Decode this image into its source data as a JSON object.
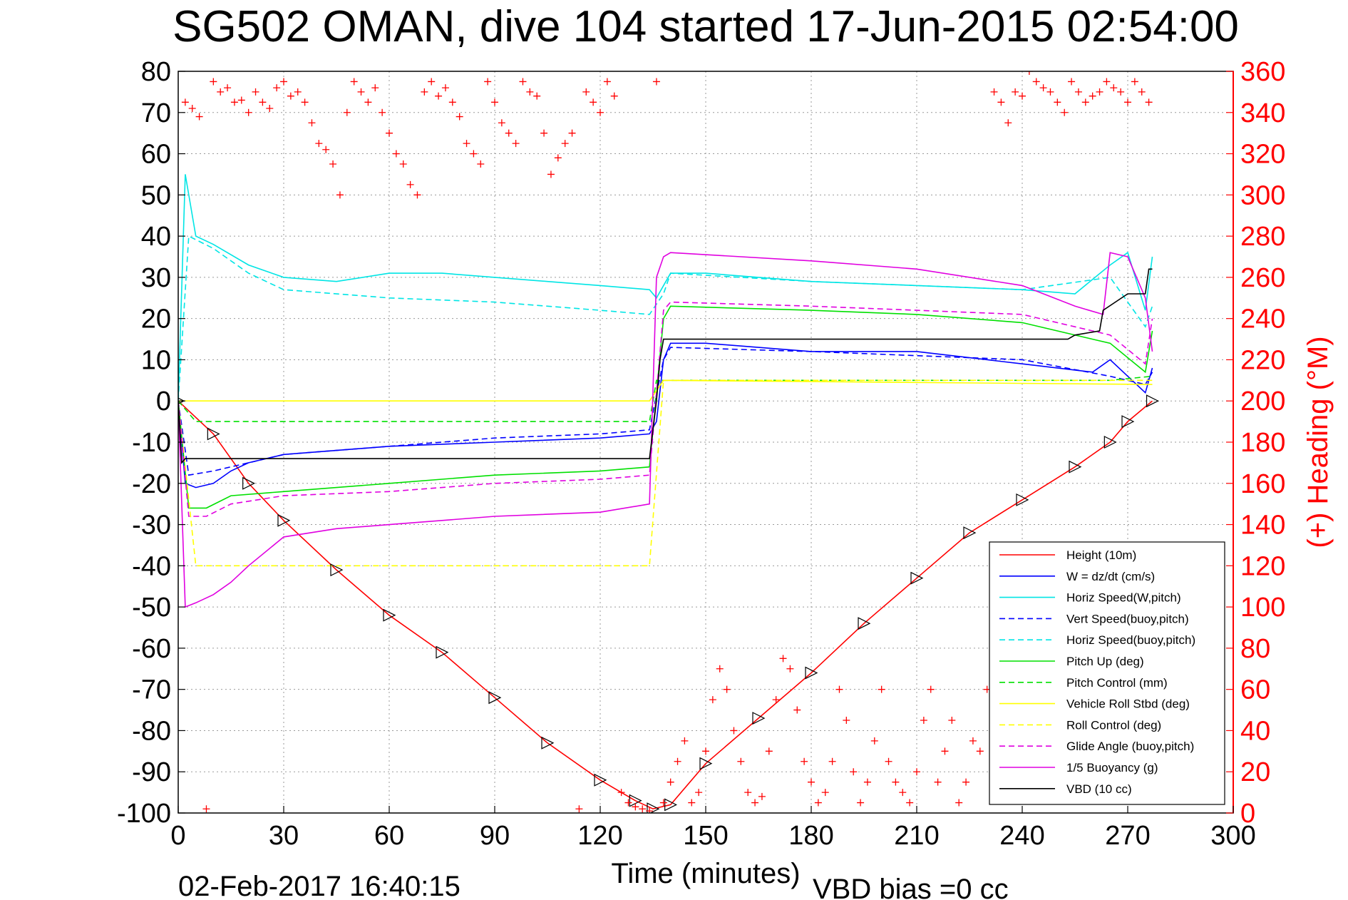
{
  "chart_data": {
    "type": "line",
    "title": "SG502 OMAN, dive 104 started 17-Jun-2015 02:54:00",
    "xlabel": "Time (minutes)",
    "ylabel_right": "(+) Heading (°M)",
    "xlim": [
      0,
      300
    ],
    "ylim_left": [
      -100,
      80
    ],
    "ylim_right": [
      0,
      360
    ],
    "x_ticks": [
      0,
      30,
      60,
      90,
      120,
      150,
      180,
      210,
      240,
      270,
      300
    ],
    "y_ticks_left": [
      80,
      70,
      60,
      50,
      40,
      30,
      20,
      10,
      0,
      -10,
      -20,
      -30,
      -40,
      -50,
      -60,
      -70,
      -80,
      -90,
      -100
    ],
    "y_ticks_right": [
      360,
      340,
      320,
      300,
      280,
      260,
      240,
      220,
      200,
      180,
      160,
      140,
      120,
      100,
      80,
      60,
      40,
      20,
      0
    ],
    "grid": true,
    "legend_position": "bottom-right",
    "footer_date": "02-Feb-2017 16:40:15",
    "footer_note": "VBD bias =0 cc",
    "series": [
      {
        "name": "Height (10m)",
        "color": "#ff0000",
        "style": "solid",
        "x": [
          0,
          10,
          20,
          30,
          45,
          60,
          75,
          90,
          105,
          120,
          130,
          135,
          140,
          150,
          165,
          180,
          195,
          210,
          225,
          240,
          255,
          265,
          270,
          277
        ],
        "y": [
          0,
          -8,
          -20,
          -29,
          -41,
          -52,
          -61,
          -72,
          -83,
          -92,
          -97,
          -99,
          -98,
          -88,
          -77,
          -66,
          -54,
          -43,
          -32,
          -24,
          -16,
          -10,
          -5,
          0
        ]
      },
      {
        "name": "W = dz/dt (cm/s)",
        "color": "#0000ff",
        "style": "solid",
        "x": [
          0,
          2,
          5,
          10,
          15,
          20,
          30,
          45,
          60,
          90,
          120,
          134,
          136,
          138,
          140,
          150,
          180,
          210,
          240,
          260,
          265,
          270,
          275,
          277
        ],
        "y": [
          0,
          -20,
          -21,
          -20,
          -17,
          -15,
          -13,
          -12,
          -11,
          -10,
          -9,
          -8,
          -5,
          10,
          14,
          14,
          12,
          12,
          9,
          7,
          10,
          6,
          2,
          8
        ]
      },
      {
        "name": "Horiz Speed(W,pitch)",
        "color": "#00e5e5",
        "style": "solid",
        "x": [
          0,
          2,
          5,
          10,
          20,
          30,
          45,
          60,
          75,
          90,
          105,
          120,
          134,
          136,
          140,
          150,
          180,
          210,
          240,
          255,
          265,
          270,
          275,
          277
        ],
        "y": [
          0,
          55,
          40,
          38,
          33,
          30,
          29,
          31,
          31,
          30,
          29,
          28,
          27,
          25,
          31,
          31,
          29,
          28,
          27,
          26,
          33,
          36,
          22,
          35
        ]
      },
      {
        "name": "Vert Speed(buoy,pitch)",
        "color": "#0000ff",
        "style": "dashed",
        "x": [
          0,
          3,
          10,
          20,
          30,
          60,
          90,
          120,
          134,
          138,
          140,
          180,
          210,
          240,
          265,
          275,
          277
        ],
        "y": [
          0,
          -18,
          -17,
          -15,
          -13,
          -11,
          -9,
          -8,
          -7,
          10,
          13,
          12,
          11,
          10,
          6,
          4,
          7
        ]
      },
      {
        "name": "Horiz Speed(buoy,pitch)",
        "color": "#00e5e5",
        "style": "dashed",
        "x": [
          0,
          3,
          10,
          20,
          30,
          60,
          90,
          120,
          134,
          138,
          140,
          180,
          210,
          240,
          265,
          275,
          277
        ],
        "y": [
          0,
          40,
          37,
          31,
          27,
          25,
          24,
          22,
          21,
          26,
          31,
          29,
          28,
          27,
          30,
          18,
          23
        ]
      },
      {
        "name": "Pitch Up (deg)",
        "color": "#00e000",
        "style": "solid",
        "x": [
          0,
          3,
          8,
          15,
          30,
          60,
          90,
          120,
          134,
          138,
          140,
          180,
          210,
          240,
          260,
          265,
          275,
          277
        ],
        "y": [
          0,
          -26,
          -26,
          -23,
          -22,
          -20,
          -18,
          -17,
          -16,
          20,
          23,
          22,
          21,
          19,
          15,
          14,
          7,
          17
        ]
      },
      {
        "name": "Pitch Control (mm)",
        "color": "#00e000",
        "style": "dashed",
        "x": [
          0,
          5,
          134,
          136,
          140,
          265,
          277
        ],
        "y": [
          0,
          -5,
          -5,
          5,
          5,
          5,
          6
        ]
      },
      {
        "name": "Vehicle Roll Stbd (deg)",
        "color": "#ffff00",
        "style": "solid",
        "x": [
          0,
          2,
          5,
          134,
          138,
          277
        ],
        "y": [
          0,
          0,
          0,
          0,
          5,
          4
        ]
      },
      {
        "name": "Roll Control (deg)",
        "color": "#ffff00",
        "style": "dashed",
        "x": [
          0,
          5,
          134,
          138,
          277
        ],
        "y": [
          0,
          -40,
          -40,
          5,
          5
        ]
      },
      {
        "name": "Glide Angle (buoy,pitch)",
        "color": "#e000e0",
        "style": "dashed",
        "x": [
          0,
          3,
          8,
          15,
          30,
          60,
          90,
          120,
          134,
          138,
          140,
          180,
          210,
          240,
          260,
          265,
          275,
          277
        ],
        "y": [
          0,
          -28,
          -28,
          -25,
          -23,
          -22,
          -20,
          -19,
          -18,
          22,
          24,
          23,
          22,
          21,
          17,
          16,
          9,
          20
        ]
      },
      {
        "name": "1/5 Buoyancy (g)",
        "color": "#e000e0",
        "style": "solid",
        "x": [
          0,
          2,
          5,
          10,
          15,
          20,
          30,
          45,
          60,
          90,
          120,
          134,
          136,
          138,
          140,
          180,
          210,
          240,
          255,
          263,
          265,
          270,
          275,
          277
        ],
        "y": [
          0,
          -50,
          -49,
          -47,
          -44,
          -40,
          -33,
          -31,
          -30,
          -28,
          -27,
          -25,
          30,
          35,
          36,
          34,
          32,
          28,
          23,
          21,
          36,
          35,
          25,
          12
        ]
      },
      {
        "name": "VBD (10 cc)",
        "color": "#000000",
        "style": "solid",
        "x": [
          0,
          1,
          2,
          10,
          45,
          134,
          136,
          137,
          138,
          253,
          255,
          262,
          263,
          270,
          275,
          276,
          277
        ],
        "y": [
          0,
          -15,
          -14,
          -14,
          -14,
          -14,
          0,
          10,
          15,
          15,
          16,
          17,
          22,
          26,
          26,
          32,
          32
        ]
      }
    ],
    "heading": {
      "name": "Heading (°M)",
      "color": "#ff0000",
      "marker": "+",
      "axis": "right",
      "x": [
        2,
        4,
        6,
        8,
        10,
        12,
        14,
        16,
        18,
        20,
        22,
        24,
        26,
        28,
        30,
        32,
        34,
        36,
        38,
        40,
        42,
        44,
        46,
        48,
        50,
        52,
        54,
        56,
        58,
        60,
        62,
        64,
        66,
        68,
        70,
        72,
        74,
        76,
        78,
        80,
        82,
        84,
        86,
        88,
        90,
        92,
        94,
        96,
        98,
        100,
        102,
        104,
        106,
        108,
        110,
        112,
        114,
        116,
        118,
        120,
        122,
        124,
        126,
        128,
        130,
        132,
        134,
        136,
        138,
        140,
        142,
        144,
        146,
        148,
        150,
        152,
        154,
        156,
        158,
        160,
        162,
        164,
        166,
        168,
        170,
        172,
        174,
        176,
        178,
        180,
        182,
        184,
        186,
        188,
        190,
        192,
        194,
        196,
        198,
        200,
        202,
        204,
        206,
        208,
        210,
        212,
        214,
        216,
        218,
        220,
        222,
        224,
        226,
        228,
        230,
        232,
        234,
        236,
        238,
        240,
        242,
        244,
        246,
        248,
        250,
        252,
        254,
        256,
        258,
        260,
        262,
        264,
        266,
        268,
        270,
        272,
        274,
        276
      ],
      "y": [
        345,
        342,
        338,
        2,
        355,
        350,
        352,
        345,
        346,
        340,
        350,
        345,
        342,
        352,
        355,
        348,
        350,
        345,
        335,
        325,
        322,
        315,
        300,
        340,
        355,
        350,
        345,
        352,
        340,
        330,
        320,
        315,
        305,
        300,
        350,
        355,
        348,
        352,
        345,
        338,
        325,
        320,
        315,
        355,
        345,
        335,
        330,
        325,
        355,
        350,
        348,
        330,
        310,
        318,
        325,
        330,
        2,
        350,
        345,
        340,
        355,
        348,
        10,
        5,
        3,
        2,
        1,
        355,
        5,
        15,
        25,
        35,
        5,
        10,
        30,
        55,
        70,
        60,
        40,
        25,
        10,
        5,
        8,
        30,
        55,
        75,
        70,
        50,
        25,
        15,
        5,
        10,
        25,
        60,
        45,
        20,
        5,
        15,
        35,
        60,
        25,
        15,
        10,
        5,
        20,
        45,
        60,
        15,
        30,
        45,
        5,
        15,
        35,
        30,
        60,
        350,
        345,
        335,
        350,
        348,
        360,
        355,
        352,
        350,
        345,
        340,
        355,
        350,
        345,
        348,
        350,
        355,
        352,
        350,
        345,
        355,
        350,
        345
      ]
    }
  }
}
